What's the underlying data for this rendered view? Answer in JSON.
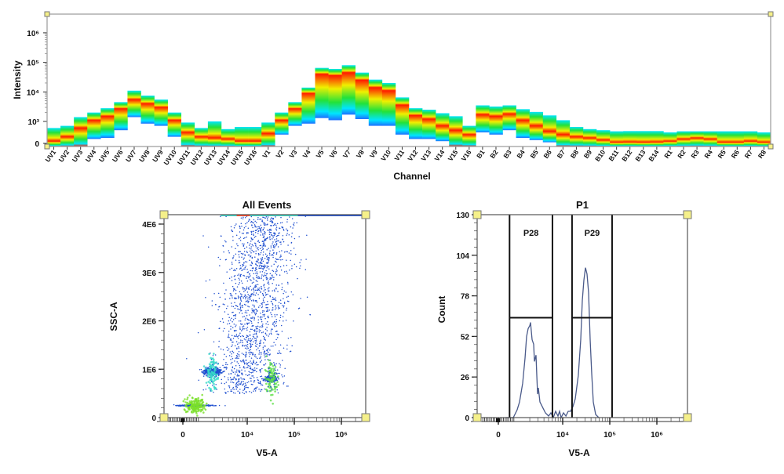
{
  "chart_data": [
    {
      "type": "heatmap",
      "xlabel": "Channel",
      "ylabel": "Intensity",
      "y_ticks": [
        "0",
        "10³",
        "10⁴",
        "10⁵",
        "10⁶"
      ],
      "y_scale": "biexponential",
      "colormap": [
        "#1e6fff",
        "#00e5ff",
        "#22e23a",
        "#f0f000",
        "#ff1a00"
      ],
      "channels": [
        {
          "name": "UV1",
          "low": 0,
          "peak": 100,
          "high": 700
        },
        {
          "name": "UV2",
          "low": 0,
          "peak": 300,
          "high": 800
        },
        {
          "name": "UV3",
          "low": 0,
          "peak": 700,
          "high": 1400
        },
        {
          "name": "UV4",
          "low": 200,
          "peak": 1100,
          "high": 2000
        },
        {
          "name": "UV5",
          "low": 250,
          "peak": 1500,
          "high": 2800
        },
        {
          "name": "UV6",
          "low": 600,
          "peak": 2700,
          "high": 4500
        },
        {
          "name": "UV7",
          "low": 1400,
          "peak": 5500,
          "high": 11000
        },
        {
          "name": "UV8",
          "low": 900,
          "peak": 4000,
          "high": 7500
        },
        {
          "name": "UV9",
          "low": 800,
          "peak": 3000,
          "high": 5500
        },
        {
          "name": "UV10",
          "low": 300,
          "peak": 1100,
          "high": 2000
        },
        {
          "name": "UV11",
          "low": 0,
          "peak": 500,
          "high": 950
        },
        {
          "name": "UV12",
          "low": 0,
          "peak": 300,
          "high": 700
        },
        {
          "name": "UV13",
          "low": 0,
          "peak": 250,
          "high": 1000
        },
        {
          "name": "UV14",
          "low": 0,
          "peak": 200,
          "high": 650
        },
        {
          "name": "UV15",
          "low": 0,
          "peak": 100,
          "high": 750
        },
        {
          "name": "UV16",
          "low": 0,
          "peak": 100,
          "high": 750
        },
        {
          "name": "V1",
          "low": 0,
          "peak": 450,
          "high": 950
        },
        {
          "name": "V2",
          "low": 400,
          "peak": 1100,
          "high": 2000
        },
        {
          "name": "V3",
          "low": 800,
          "peak": 2700,
          "high": 4500
        },
        {
          "name": "V4",
          "low": 900,
          "peak": 9000,
          "high": 14000
        },
        {
          "name": "V5",
          "low": 1300,
          "peak": 40000,
          "high": 65000
        },
        {
          "name": "V6",
          "low": 1100,
          "peak": 36000,
          "high": 60000
        },
        {
          "name": "V7",
          "low": 1700,
          "peak": 45000,
          "high": 80000
        },
        {
          "name": "V8",
          "low": 1200,
          "peak": 25000,
          "high": 45000
        },
        {
          "name": "V9",
          "low": 800,
          "peak": 14000,
          "high": 26000
        },
        {
          "name": "V10",
          "low": 800,
          "peak": 11000,
          "high": 20000
        },
        {
          "name": "V11",
          "low": 400,
          "peak": 3600,
          "high": 6500
        },
        {
          "name": "V12",
          "low": 200,
          "peak": 1600,
          "high": 2800
        },
        {
          "name": "V13",
          "low": 200,
          "peak": 1200,
          "high": 2500
        },
        {
          "name": "V14",
          "low": 100,
          "peak": 800,
          "high": 1900
        },
        {
          "name": "V15",
          "low": 0,
          "peak": 600,
          "high": 1500
        },
        {
          "name": "V16",
          "low": 0,
          "peak": 400,
          "high": 800
        },
        {
          "name": "B1",
          "low": 500,
          "peak": 1700,
          "high": 3500
        },
        {
          "name": "B2",
          "low": 400,
          "peak": 1500,
          "high": 3200
        },
        {
          "name": "B3",
          "low": 600,
          "peak": 1800,
          "high": 3500
        },
        {
          "name": "B4",
          "low": 250,
          "peak": 1100,
          "high": 2600
        },
        {
          "name": "B5",
          "low": 150,
          "peak": 800,
          "high": 2100
        },
        {
          "name": "B6",
          "low": 50,
          "peak": 550,
          "high": 1600
        },
        {
          "name": "B7",
          "low": 0,
          "peak": 400,
          "high": 1100
        },
        {
          "name": "B8",
          "low": 0,
          "peak": 300,
          "high": 750
        },
        {
          "name": "B9",
          "low": 0,
          "peak": 250,
          "high": 650
        },
        {
          "name": "B10",
          "low": 0,
          "peak": 150,
          "high": 600
        },
        {
          "name": "B11",
          "low": 0,
          "peak": 50,
          "high": 550
        },
        {
          "name": "B12",
          "low": 0,
          "peak": 60,
          "high": 560
        },
        {
          "name": "B13",
          "low": 0,
          "peak": 50,
          "high": 560
        },
        {
          "name": "B14",
          "low": 0,
          "peak": 60,
          "high": 560
        },
        {
          "name": "R1",
          "low": 0,
          "peak": 100,
          "high": 500
        },
        {
          "name": "R2",
          "low": 0,
          "peak": 200,
          "high": 550
        },
        {
          "name": "R3",
          "low": 0,
          "peak": 250,
          "high": 550
        },
        {
          "name": "R4",
          "low": 0,
          "peak": 200,
          "high": 550
        },
        {
          "name": "R5",
          "low": 0,
          "peak": 50,
          "high": 550
        },
        {
          "name": "R6",
          "low": 0,
          "peak": 50,
          "high": 550
        },
        {
          "name": "R7",
          "low": 0,
          "peak": 100,
          "high": 550
        },
        {
          "name": "R8",
          "low": 0,
          "peak": 50,
          "high": 500
        }
      ]
    },
    {
      "type": "scatter",
      "title": "All Events",
      "xlabel": "V5-A",
      "ylabel": "SSC-A",
      "x_scale": "biexponential",
      "x_ticks": [
        "0",
        "10⁴",
        "10⁵",
        "10⁶"
      ],
      "y_ticks": [
        "0",
        "1E6",
        "2E6",
        "3E6",
        "4E6"
      ],
      "populations": [
        {
          "x_center": 700,
          "y_center": 250000,
          "core_color": "#7be02a"
        },
        {
          "x_center": 1800,
          "y_center": 950000,
          "core_color": "#36d9c8"
        },
        {
          "x_center": 32000,
          "y_center": 800000,
          "core_color": "#5fe04a"
        },
        {
          "x_center": 15000,
          "y_center": 2600000,
          "core_color": "#2050d0"
        }
      ],
      "point_color": "#2050d0"
    },
    {
      "type": "line",
      "title": "P1",
      "xlabel": "V5-A",
      "ylabel": "Count",
      "x_scale": "biexponential",
      "x_ticks": [
        "0",
        "10⁴",
        "10⁵",
        "10⁶"
      ],
      "y_ticks": [
        "0",
        "26",
        "52",
        "78",
        "104",
        "130"
      ],
      "ylim": [
        0,
        130
      ],
      "line_color": "#4a5a8a",
      "x": [
        430,
        870,
        1080,
        1210,
        1410,
        1585,
        1710,
        1850,
        2000,
        2070,
        2240,
        2420,
        2510,
        2710,
        2820,
        2930,
        3040,
        3290,
        3690,
        4300,
        5010,
        5620,
        6310,
        7080,
        7940,
        8580,
        9260,
        10400,
        11700,
        13100,
        14700,
        16500,
        18500,
        21500,
        24200,
        26100,
        28200,
        30400,
        32900,
        35500,
        38300,
        41400,
        44700,
        50100,
        58500
      ],
      "y": [
        0,
        0,
        5,
        10,
        22,
        38,
        52,
        57,
        59,
        61,
        50,
        47,
        36,
        40,
        27,
        15,
        19,
        10,
        7,
        3,
        1,
        3,
        0,
        4,
        1,
        4,
        0,
        3,
        1,
        4,
        4,
        7,
        12,
        27,
        50,
        75,
        88,
        96,
        92,
        80,
        50,
        28,
        10,
        2,
        0
      ],
      "gates": [
        {
          "name": "P28",
          "x_min": 650,
          "x_max": 6060,
          "level": 64
        },
        {
          "name": "P29",
          "x_min": 15800,
          "x_max": 112000,
          "level": 64
        }
      ]
    }
  ]
}
